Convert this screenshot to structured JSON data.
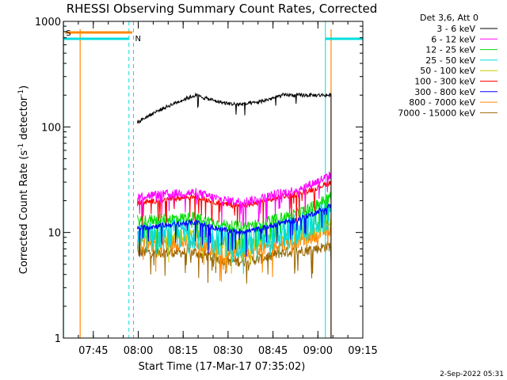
{
  "chart_data": {
    "type": "line",
    "title": "RHESSI Observing Summary Count Rates, Corrected",
    "xlabel": "Start Time (17-Mar-17 07:35:02)",
    "ylabel_main": "Corrected Count Rate (s",
    "ylabel_sup1": "-1",
    "ylabel_mid": " detector",
    "ylabel_sup2": "-1",
    "ylabel_end": ")",
    "yscale": "log",
    "ylim": [
      1,
      1000
    ],
    "xlim_minutes": [
      0,
      100
    ],
    "y_ticks": [
      {
        "value": 1,
        "label": "1"
      },
      {
        "value": 10,
        "label": "10"
      },
      {
        "value": 100,
        "label": "100"
      },
      {
        "value": 1000,
        "label": "1000"
      }
    ],
    "x_ticks": [
      {
        "minute": 10,
        "label": "07:45"
      },
      {
        "minute": 25,
        "label": "08:00"
      },
      {
        "minute": 40,
        "label": "08:15"
      },
      {
        "minute": 55,
        "label": "08:30"
      },
      {
        "minute": 70,
        "label": "08:45"
      },
      {
        "minute": 85,
        "label": "09:00"
      },
      {
        "minute": 100,
        "label": "09:15"
      }
    ],
    "legend_title": "Det 3,6, Att 0",
    "series": [
      {
        "name": "3 - 6 keV",
        "color": "#000000",
        "start": 110,
        "hump": 200,
        "end": 200,
        "noise": 0.04
      },
      {
        "name": "6 - 12 keV",
        "color": "#ff00ff",
        "start": 22,
        "hump": 24,
        "end": 35,
        "noise": 0.1
      },
      {
        "name": "12 - 25 keV",
        "color": "#00dd00",
        "start": 13,
        "hump": 14,
        "end": 22,
        "noise": 0.12
      },
      {
        "name": "25 - 50 keV",
        "color": "#00dddd",
        "start": 9,
        "hump": 10,
        "end": 15,
        "noise": 0.35
      },
      {
        "name": "50 - 100 keV",
        "color": "#cccc00",
        "start": 9,
        "hump": 9.5,
        "end": 12,
        "noise": 0.15
      },
      {
        "name": "100 - 300 keV",
        "color": "#ff0000",
        "start": 19,
        "hump": 22,
        "end": 30,
        "noise": 0.06
      },
      {
        "name": "300 - 800 keV",
        "color": "#0000ff",
        "start": 11,
        "hump": 12.5,
        "end": 18,
        "noise": 0.06
      },
      {
        "name": "800 - 7000 keV",
        "color": "#ff8800",
        "start": 8,
        "hump": 8,
        "end": 11,
        "noise": 0.18
      },
      {
        "name": "7000 - 15000 keV",
        "color": "#996600",
        "start": 6.5,
        "hump": 6.5,
        "end": 7.5,
        "noise": 0.12
      }
    ],
    "data_window_minutes": [
      24.7,
      89.4
    ],
    "annotations": {
      "saa_label": "S",
      "night_label": "N",
      "saa_color": "#ff8800",
      "night_color": "#00dddd",
      "saa_lines_minutes": [
        5.6,
        89.4
      ],
      "night_solid_minutes": [
        0.1,
        87.5
      ],
      "night_dashed_minutes": [
        21.9,
        23.4,
        100.0
      ],
      "saa_bar_minutes": [
        0.6,
        23.0
      ],
      "night_bar_minutes": [
        [
          0.1,
          21.9
        ],
        [
          87.5,
          100.0
        ]
      ]
    }
  },
  "timestamp": "2-Sep-2022 05:31"
}
